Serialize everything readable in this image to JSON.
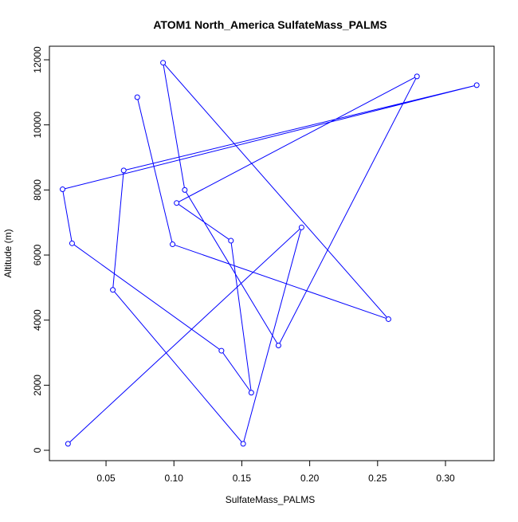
{
  "chart_data": {
    "type": "line",
    "title": "ATOM1 North_America SulfateMass_PALMS",
    "xlabel": "SulfateMass_PALMS",
    "ylabel": "Altitude (m)",
    "color": "#0000ff",
    "markers": true,
    "x": [
      0.022,
      0.194,
      0.151,
      0.055,
      0.063,
      0.323,
      0.018,
      0.025,
      0.135,
      0.157,
      0.142,
      0.102,
      0.279,
      0.177,
      0.108,
      0.092,
      0.258,
      0.099,
      0.073
    ],
    "y": [
      200,
      6850,
      200,
      4930,
      8600,
      11220,
      8020,
      6360,
      3060,
      1770,
      6440,
      7600,
      11490,
      3220,
      8000,
      11910,
      4030,
      6330,
      10850
    ],
    "xlim": [
      0.0083,
      0.3358
    ],
    "ylim": [
      -318,
      12417
    ],
    "xticks": [
      0.05,
      {
        "value": 0.1,
        "label": "0.10"
      },
      0.15,
      {
        "value": 0.2,
        "label": "0.20"
      },
      0.25,
      {
        "value": 0.3,
        "label": "0.30"
      }
    ],
    "yticks": [
      0,
      2000,
      4000,
      6000,
      8000,
      10000,
      12000
    ]
  }
}
